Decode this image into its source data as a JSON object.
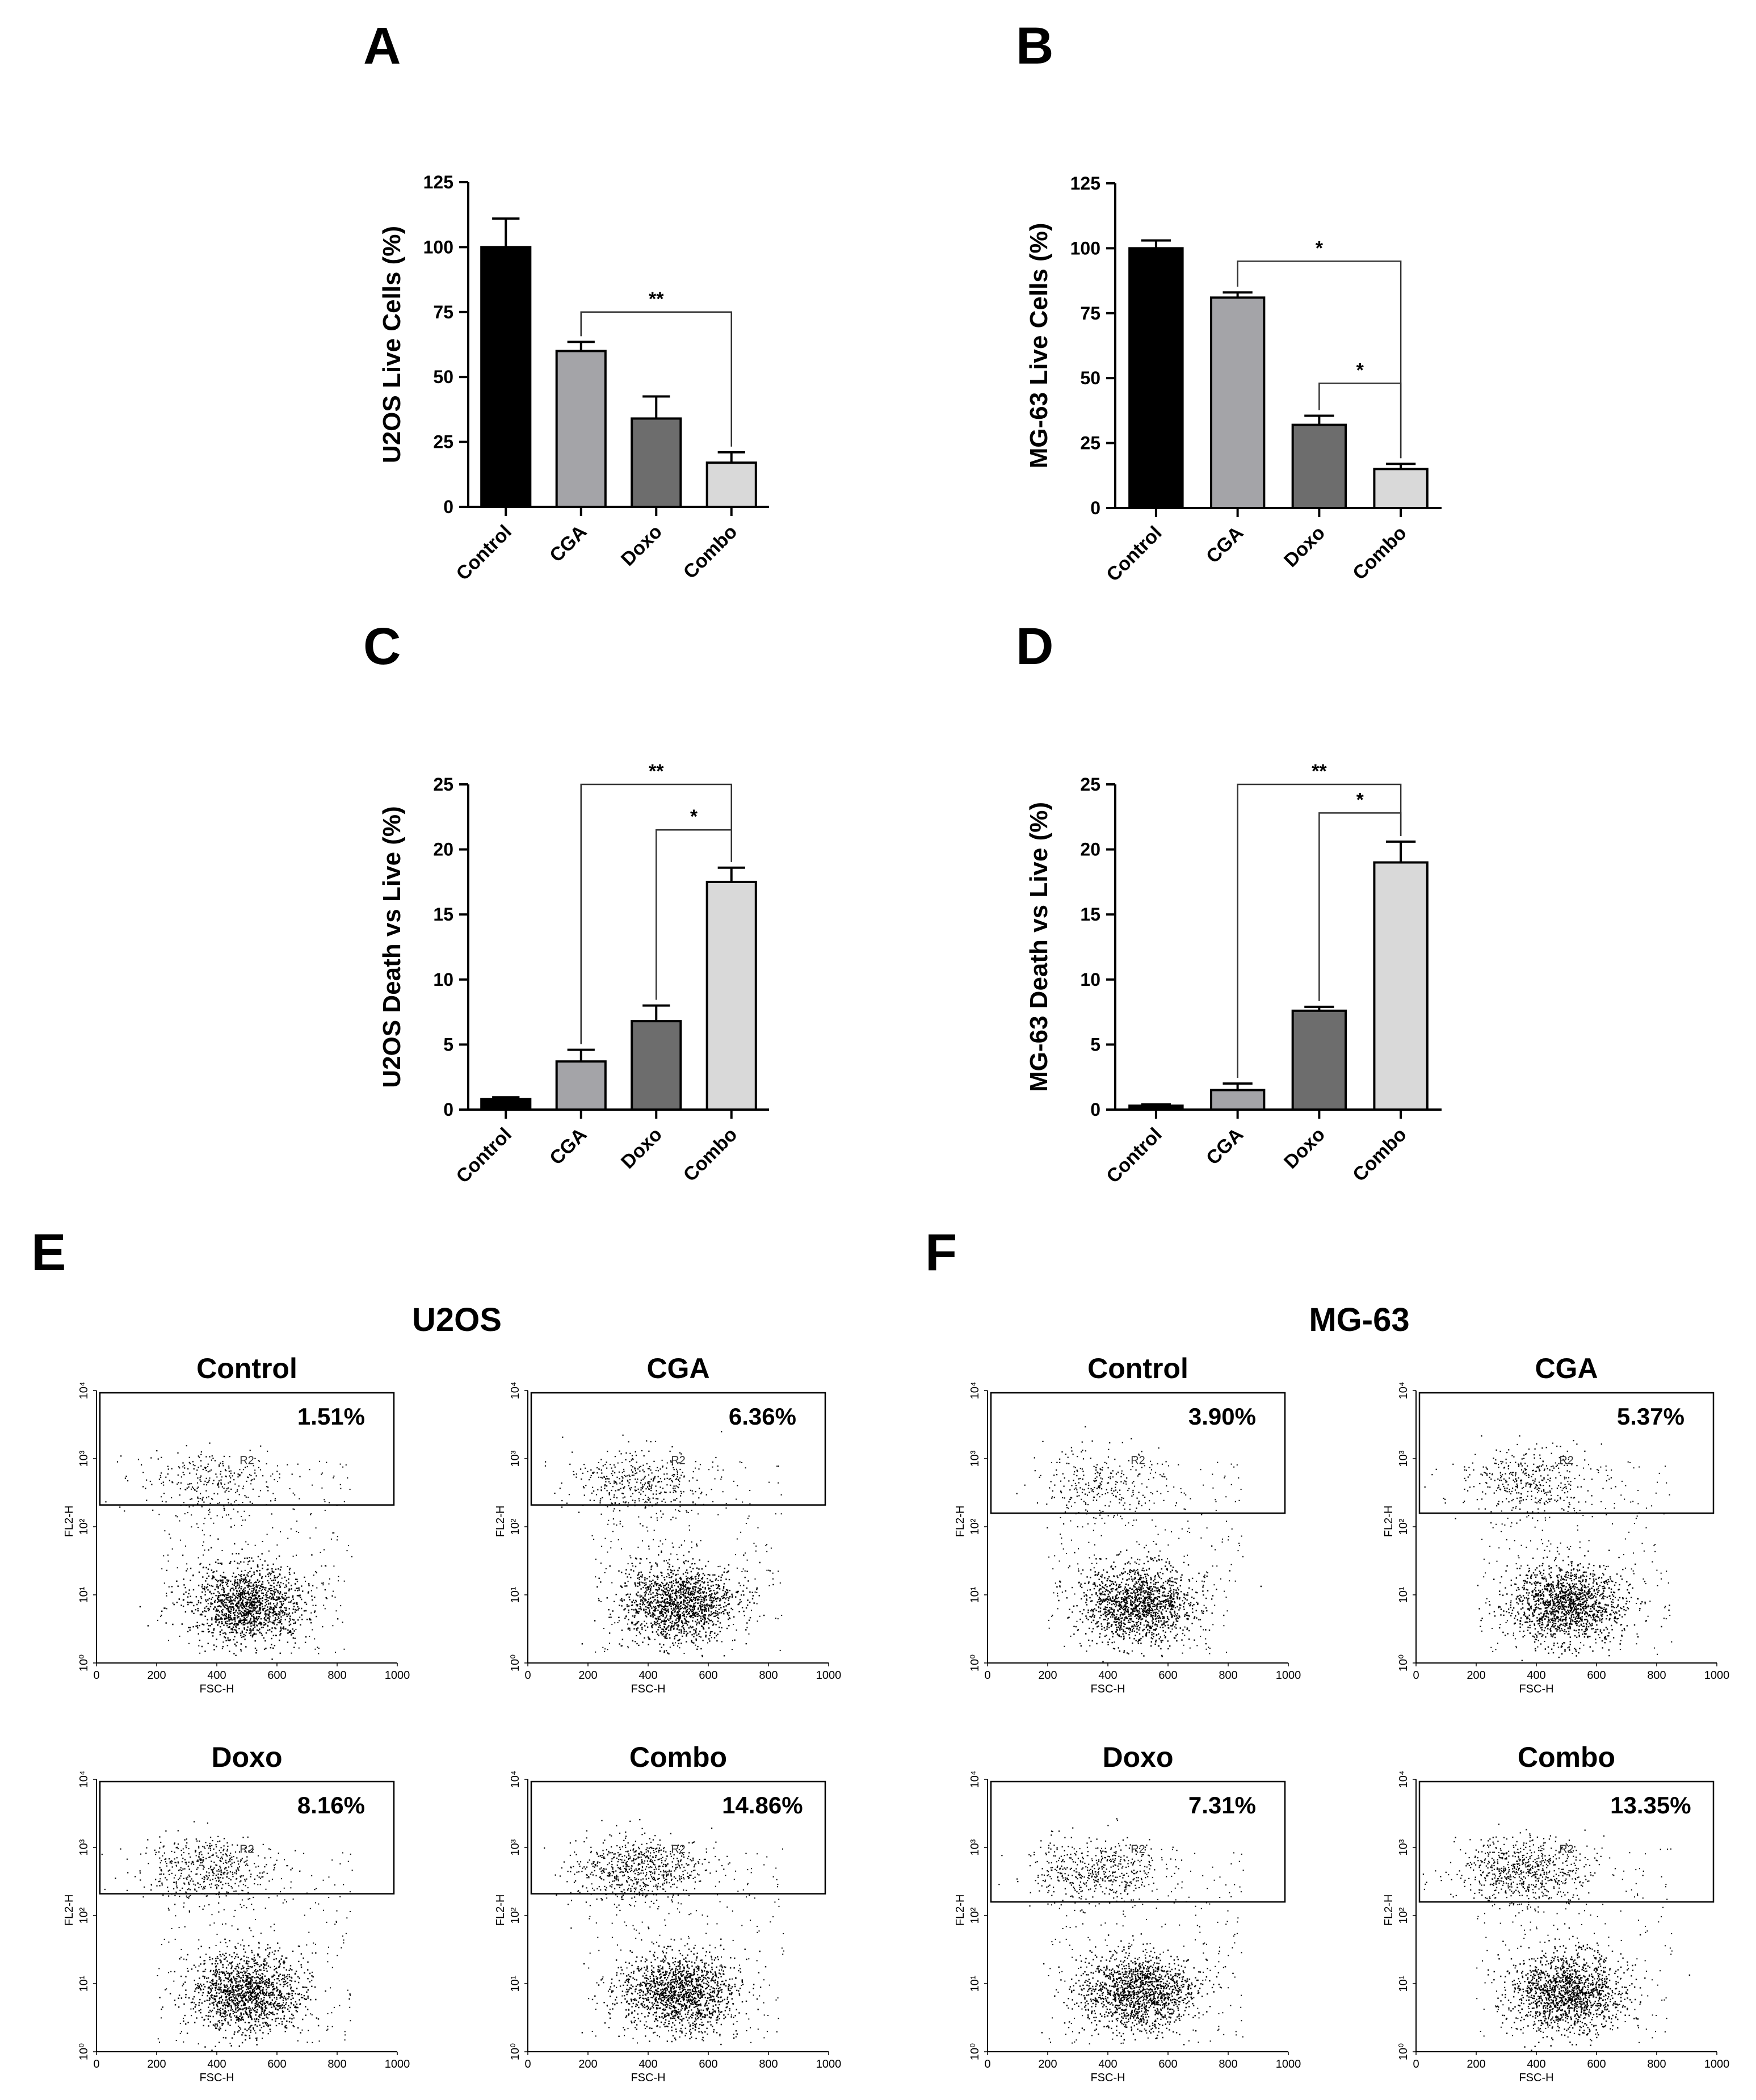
{
  "figure": {
    "panel_letters": [
      "A",
      "B",
      "C",
      "D",
      "E",
      "F"
    ]
  },
  "chart_data": [
    {
      "panel": "A",
      "type": "bar",
      "ylabel": "U2OS Live Cells (%)",
      "categories": [
        "Control",
        "CGA",
        "Doxo",
        "Combo"
      ],
      "values": [
        100,
        60,
        34,
        17
      ],
      "errors": [
        11,
        3.5,
        8.5,
        4
      ],
      "colors": [
        "#000000",
        "#a4a4a8",
        "#6d6d6d",
        "#d9d9d9"
      ],
      "ylim": [
        0,
        125
      ],
      "yticks": [
        0,
        25,
        50,
        75,
        100,
        125
      ],
      "significance": [
        {
          "from": 1,
          "to": 3,
          "label": "**",
          "level": 75
        }
      ]
    },
    {
      "panel": "B",
      "type": "bar",
      "ylabel": "MG-63 Live Cells (%)",
      "categories": [
        "Control",
        "CGA",
        "Doxo",
        "Combo"
      ],
      "values": [
        100,
        81,
        32,
        15
      ],
      "errors": [
        3,
        2,
        3.5,
        2
      ],
      "colors": [
        "#000000",
        "#a4a4a8",
        "#6d6d6d",
        "#d9d9d9"
      ],
      "ylim": [
        0,
        125
      ],
      "yticks": [
        0,
        25,
        50,
        75,
        100,
        125
      ],
      "significance": [
        {
          "from": 1,
          "to": 3,
          "label": "*",
          "level": 95
        },
        {
          "from": 2,
          "to": 3,
          "label": "*",
          "level": 48
        }
      ]
    },
    {
      "panel": "C",
      "type": "bar",
      "ylabel": "U2OS Death vs Live (%)",
      "categories": [
        "Control",
        "CGA",
        "Doxo",
        "Combo"
      ],
      "values": [
        0.8,
        3.7,
        6.8,
        17.5
      ],
      "errors": [
        0.15,
        0.9,
        1.2,
        1.1
      ],
      "colors": [
        "#000000",
        "#a4a4a8",
        "#6d6d6d",
        "#d9d9d9"
      ],
      "ylim": [
        0,
        25
      ],
      "yticks": [
        0,
        5,
        10,
        15,
        20,
        25
      ],
      "significance": [
        {
          "from": 1,
          "to": 3,
          "label": "**",
          "level": 25
        },
        {
          "from": 2,
          "to": 3,
          "label": "*",
          "level": 21.5
        }
      ]
    },
    {
      "panel": "D",
      "type": "bar",
      "ylabel": "MG-63 Death vs Live (%)",
      "categories": [
        "Control",
        "CGA",
        "Doxo",
        "Combo"
      ],
      "values": [
        0.3,
        1.5,
        7.6,
        19.0
      ],
      "errors": [
        0.1,
        0.5,
        0.3,
        1.6
      ],
      "colors": [
        "#000000",
        "#a4a4a8",
        "#6d6d6d",
        "#d9d9d9"
      ],
      "ylim": [
        0,
        25
      ],
      "yticks": [
        0,
        5,
        10,
        15,
        20,
        25
      ],
      "significance": [
        {
          "from": 1,
          "to": 3,
          "label": "**",
          "level": 25
        },
        {
          "from": 2,
          "to": 3,
          "label": "*",
          "level": 22.8
        }
      ]
    }
  ],
  "flow": {
    "E": {
      "cell_line": "U2OS",
      "plots": [
        {
          "label": "Control",
          "percent": "1.51%"
        },
        {
          "label": "CGA",
          "percent": "6.36%"
        },
        {
          "label": "Doxo",
          "percent": "8.16%"
        },
        {
          "label": "Combo",
          "percent": "14.86%"
        }
      ]
    },
    "F": {
      "cell_line": "MG-63",
      "plots": [
        {
          "label": "Control",
          "percent": "3.90%"
        },
        {
          "label": "CGA",
          "percent": "5.37%"
        },
        {
          "label": "Doxo",
          "percent": "7.31%"
        },
        {
          "label": "Combo",
          "percent": "13.35%"
        }
      ]
    },
    "x_axis_label": "FSC-H",
    "y_axis_label": "FL2-H",
    "x_ticks": [
      "0",
      "200",
      "400",
      "600",
      "800",
      "1000"
    ],
    "y_ticks": [
      "10⁰",
      "10¹",
      "10²",
      "10³",
      "10⁴"
    ],
    "gate_label": "R2"
  }
}
